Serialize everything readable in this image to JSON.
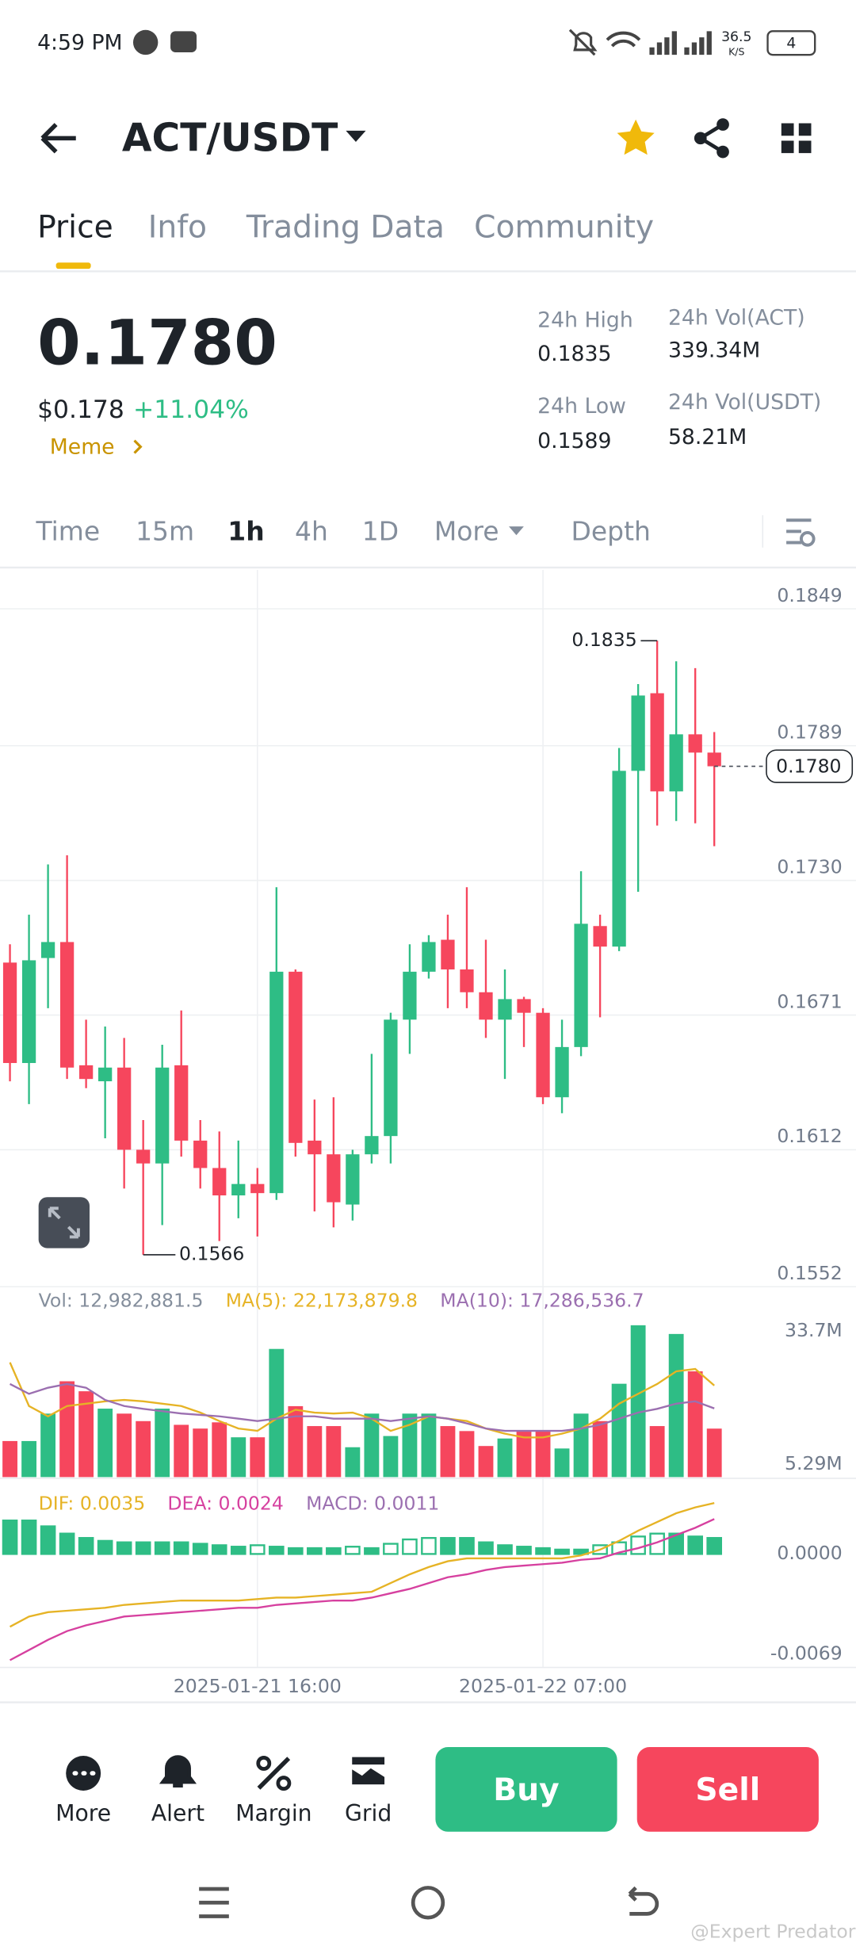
{
  "status": {
    "time": "4:59 PM",
    "speed": "36.5",
    "speed_unit": "K/S",
    "battery": "4"
  },
  "header": {
    "pair": "ACT/USDT"
  },
  "tabs": [
    "Price",
    "Info",
    "Trading Data",
    "Community"
  ],
  "ticker": {
    "price": "0.1780",
    "fiat": "$0.178",
    "change": "+11.04%",
    "tag": "Meme",
    "stats": [
      {
        "label": "24h High",
        "value": "0.1835"
      },
      {
        "label": "24h Low",
        "value": "0.1589"
      },
      {
        "label": "24h Vol(ACT)",
        "value": "339.34M"
      },
      {
        "label": "24h Vol(USDT)",
        "value": "58.21M"
      }
    ]
  },
  "intervals": [
    "Time",
    "15m",
    "1h",
    "4h",
    "1D",
    "More",
    "Depth"
  ],
  "chart_data": [
    {
      "type": "candlestick",
      "up_color": "#2ebd85",
      "down_color": "#f6465d",
      "categories": [
        null,
        null,
        null,
        null,
        null,
        null,
        null,
        null,
        null,
        null,
        null,
        null,
        null,
        "2025-01-21 16:00",
        null,
        null,
        null,
        null,
        null,
        null,
        null,
        null,
        null,
        null,
        null,
        null,
        null,
        null,
        "2025-01-22 07:00",
        null,
        null,
        null,
        null,
        null,
        null,
        null,
        null,
        null
      ],
      "open": [
        0.1694,
        0.165,
        0.1696,
        0.1703,
        0.1649,
        0.1642,
        0.1648,
        0.1612,
        0.1606,
        0.1649,
        0.1616,
        0.1604,
        0.1592,
        0.1597,
        0.1593,
        0.169,
        0.1616,
        0.161,
        0.1588,
        0.161,
        0.1618,
        0.1669,
        0.169,
        0.1704,
        0.1691,
        0.1681,
        0.1669,
        0.1678,
        0.1672,
        0.1635,
        0.1657,
        0.171,
        0.1701,
        0.1778,
        0.1812,
        0.1769,
        0.1794,
        0.1786
      ],
      "high": [
        0.1702,
        0.1715,
        0.1737,
        0.1741,
        0.1669,
        0.1666,
        0.1661,
        0.1625,
        0.1658,
        0.1673,
        0.1625,
        0.162,
        0.1616,
        0.1604,
        0.1727,
        0.1691,
        0.1634,
        0.1635,
        0.1612,
        0.1654,
        0.1672,
        0.1702,
        0.1706,
        0.1715,
        0.1727,
        0.1704,
        0.1691,
        0.1679,
        0.1674,
        0.1669,
        0.1734,
        0.1715,
        0.1788,
        0.1816,
        0.1835,
        0.1826,
        0.1823,
        0.1795
      ],
      "low": [
        0.1642,
        0.1632,
        0.1674,
        0.1643,
        0.1639,
        0.1617,
        0.1595,
        0.1566,
        0.1579,
        0.1609,
        0.1595,
        0.1572,
        0.1582,
        0.1574,
        0.159,
        0.1609,
        0.1585,
        0.1578,
        0.1581,
        0.1606,
        0.1606,
        0.1654,
        0.1687,
        0.1674,
        0.1674,
        0.1661,
        0.1643,
        0.1657,
        0.1632,
        0.1628,
        0.1653,
        0.167,
        0.1699,
        0.1725,
        0.1754,
        0.1756,
        0.1755,
        0.1745
      ],
      "close": [
        0.165,
        0.1695,
        0.1703,
        0.1648,
        0.1643,
        0.1648,
        0.1612,
        0.1606,
        0.1648,
        0.1616,
        0.1604,
        0.1592,
        0.1597,
        0.1593,
        0.169,
        0.1615,
        0.161,
        0.1589,
        0.161,
        0.1618,
        0.1669,
        0.169,
        0.1703,
        0.1691,
        0.1681,
        0.1669,
        0.1678,
        0.1672,
        0.1635,
        0.1657,
        0.1711,
        0.1701,
        0.1778,
        0.1811,
        0.1769,
        0.1794,
        0.1786,
        0.178
      ],
      "ylim": [
        0.1552,
        0.1866
      ],
      "yticks": [
        0.1849,
        0.1789,
        {
          "value": 0.173,
          "label": "0.1730"
        },
        0.1671,
        0.1612,
        0.1552
      ],
      "annotations": {
        "high": 0.1835,
        "low": 0.1566,
        "last": {
          "value": 0.178,
          "label": "0.1780"
        }
      },
      "grid": true
    },
    {
      "type": "bar",
      "ylim": [
        2.64,
        41.66
      ],
      "yticks": [
        {
          "value": 33.7,
          "label": "33.7M"
        },
        {
          "value": 5.29,
          "label": "5.29M"
        }
      ],
      "series": [
        {
          "name": "Vol: 12,982,881.5",
          "color": "#707a8a",
          "values": [
            10.33,
            10.33,
            16.18,
            23.08,
            20.95,
            17.24,
            16.18,
            14.58,
            17.24,
            13.79,
            12.99,
            14.32,
            11.13,
            11.13,
            29.98,
            17.77,
            13.52,
            13.52,
            9.01,
            16.18,
            11.4,
            16.18,
            16.18,
            13.52,
            12.46,
            9.27,
            10.87,
            12.46,
            12.46,
            8.74,
            16.18,
            14.58,
            22.55,
            35.03,
            13.52,
            33.17,
            25.2,
            12.98
          ]
        },
        {
          "name": "MA(5): 22,173,879.8",
          "color": "#e6b325",
          "values": [
            27.1,
            17.8,
            15.6,
            17.8,
            18.3,
            18.8,
            19.1,
            18.8,
            18.3,
            17.8,
            16.4,
            14.6,
            13.0,
            12.5,
            15.1,
            17.0,
            16.4,
            16.2,
            16.4,
            15.1,
            12.5,
            13.8,
            15.6,
            15.1,
            14.6,
            13.0,
            11.9,
            11.1,
            11.1,
            11.9,
            13.0,
            15.1,
            18.3,
            20.4,
            22.5,
            25.2,
            25.7,
            22.17
          ]
        },
        {
          "name": "MA(10): 17,286,536.7",
          "color": "#9b6fb0",
          "values": [
            22.5,
            20.4,
            21.7,
            22.5,
            21.7,
            19.1,
            17.8,
            17.2,
            16.7,
            16.2,
            15.9,
            15.6,
            15.1,
            14.6,
            15.1,
            15.6,
            15.6,
            15.1,
            15.1,
            15.1,
            14.6,
            15.1,
            15.6,
            15.1,
            14.1,
            13.0,
            12.5,
            12.5,
            12.5,
            12.5,
            13.0,
            13.8,
            15.1,
            16.4,
            17.2,
            18.3,
            18.8,
            17.29
          ]
        }
      ]
    },
    {
      "type": "macd",
      "ylim": [
        -0.0078,
        0.0046
      ],
      "yticks": [
        {
          "value": 0,
          "label": "0.0000"
        },
        -0.0069
      ],
      "series": [
        {
          "name": "DIF: 0.0035",
          "color": "#e6b325",
          "values": [
            -0.005,
            -0.0043,
            -0.004,
            -0.0039,
            -0.0038,
            -0.0037,
            -0.0035,
            -0.0034,
            -0.0033,
            -0.0032,
            -0.0032,
            -0.0032,
            -0.0032,
            -0.0031,
            -0.003,
            -0.003,
            -0.0029,
            -0.0028,
            -0.0027,
            -0.0026,
            -0.002,
            -0.0014,
            -0.0009,
            -0.0005,
            -0.0003,
            -0.0003,
            -0.0003,
            -0.0003,
            -0.0003,
            -0.0003,
            -0.0001,
            0.0003,
            0.0009,
            0.0016,
            0.0022,
            0.0028,
            0.0032,
            0.0035
          ]
        },
        {
          "name": "DEA: 0.0024",
          "color": "#d6409f",
          "values": [
            -0.0073,
            -0.0066,
            -0.0059,
            -0.0053,
            -0.0049,
            -0.0046,
            -0.0043,
            -0.0042,
            -0.0041,
            -0.004,
            -0.0039,
            -0.0038,
            -0.0037,
            -0.0037,
            -0.0035,
            -0.0034,
            -0.0033,
            -0.0032,
            -0.0032,
            -0.003,
            -0.0027,
            -0.0024,
            -0.002,
            -0.0016,
            -0.0014,
            -0.0011,
            -0.0009,
            -0.0008,
            -0.0007,
            -0.0006,
            -0.0004,
            -0.0003,
            0.0001,
            0.0004,
            0.0008,
            0.0013,
            0.0018,
            0.0024
          ]
        },
        {
          "name": "MACD: 0.0011",
          "color": "#2ebd85",
          "values": [
            0.0023,
            0.0023,
            0.0019,
            0.0014,
            0.0011,
            0.0009,
            0.0008,
            0.0008,
            0.0008,
            0.0008,
            0.0007,
            0.0006,
            0.0005,
            0.0006,
            0.0005,
            0.0004,
            0.0004,
            0.0004,
            0.0005,
            0.0004,
            0.0007,
            0.001,
            0.0011,
            0.0011,
            0.0011,
            0.0008,
            0.0006,
            0.0005,
            0.0004,
            0.0003,
            0.0003,
            0.0006,
            0.0008,
            0.0012,
            0.0014,
            0.0014,
            0.0012,
            0.0011
          ]
        }
      ]
    }
  ],
  "actions": [
    "More",
    "Alert",
    "Margin",
    "Grid"
  ],
  "buttons": [
    "Buy",
    "Sell"
  ],
  "watermark": "@Expert Predator"
}
